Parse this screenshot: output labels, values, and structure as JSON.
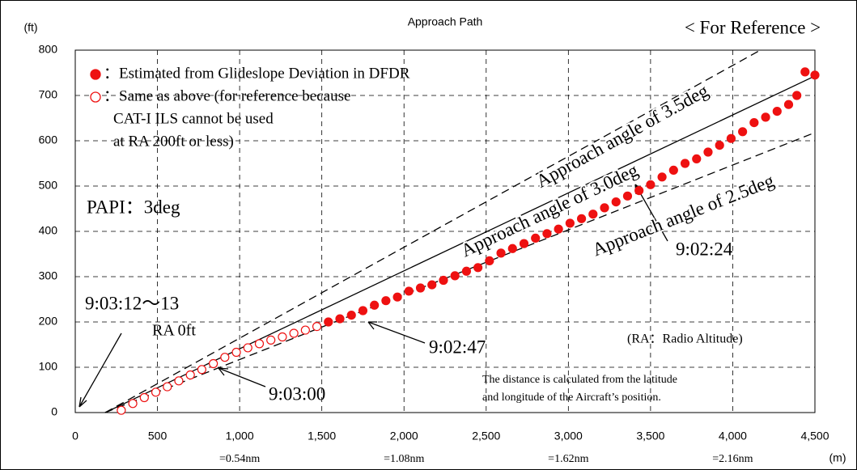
{
  "chart_data": {
    "type": "scatter",
    "title": "Approach Path",
    "subtitle": "< For Reference >",
    "y_axis_label": "(ft)",
    "x_axis_label": "(m)",
    "xlim": [
      0,
      4500
    ],
    "ylim": [
      0,
      800
    ],
    "xticks": [
      0,
      500,
      {
        "value": 1000,
        "label": "1,000"
      },
      {
        "value": 1500,
        "label": "1,500"
      },
      {
        "value": 2000,
        "label": "2,000"
      },
      {
        "value": 2500,
        "label": "2,500"
      },
      {
        "value": 3000,
        "label": "3,000"
      },
      {
        "value": 3500,
        "label": "3,500"
      },
      {
        "value": 4000,
        "label": "4,000"
      },
      {
        "value": 4500,
        "label": "4,500"
      }
    ],
    "yticks": [
      0,
      100,
      200,
      300,
      400,
      500,
      600,
      700,
      800
    ],
    "x2_labels": [
      {
        "value": 1000,
        "label": "=0.54nm"
      },
      {
        "value": 2000,
        "label": "=1.08nm"
      },
      {
        "value": 3000,
        "label": "=1.62nm"
      },
      {
        "value": 4000,
        "label": "=2.16nm"
      }
    ],
    "grid": true,
    "series": [
      {
        "name": [
          "：Estimated from Glideslope Deviation in DFDR"
        ],
        "marker": "filled",
        "color": "#ee1111",
        "x": [
          1540,
          1610,
          1680,
          1750,
          1820,
          1890,
          1960,
          2030,
          2100,
          2170,
          2240,
          2310,
          2380,
          2450,
          2520,
          2590,
          2660,
          2730,
          2800,
          2870,
          2940,
          3010,
          3080,
          3150,
          3220,
          3290,
          3360,
          3430,
          3500,
          3570,
          3640,
          3710,
          3780,
          3850,
          3920,
          3990,
          4060,
          4130,
          4200,
          4270,
          4340,
          4390,
          4440,
          4500
        ],
        "values": [
          200,
          207,
          215,
          225,
          237,
          247,
          255,
          268,
          275,
          282,
          292,
          302,
          312,
          320,
          335,
          352,
          362,
          373,
          385,
          395,
          405,
          418,
          428,
          438,
          452,
          465,
          478,
          490,
          503,
          520,
          535,
          550,
          560,
          575,
          590,
          605,
          620,
          640,
          652,
          665,
          680,
          700,
          752,
          745
        ]
      },
      {
        "name": [
          "：Same as above (for reference because",
          "CAT-I ILS cannot be used",
          "at RA 200ft or less)"
        ],
        "marker": "hollow",
        "color": "#ee1111",
        "x": [
          280,
          350,
          420,
          490,
          560,
          630,
          700,
          770,
          840,
          910,
          980,
          1050,
          1120,
          1190,
          1260,
          1330,
          1400,
          1470
        ],
        "values": [
          5,
          20,
          33,
          45,
          57,
          70,
          83,
          95,
          108,
          122,
          133,
          143,
          152,
          160,
          167,
          175,
          182,
          190
        ]
      }
    ],
    "reference_lines": [
      {
        "label": "Approach angle of 3.5deg",
        "style": "dashed",
        "x": [
          182,
          4168
        ],
        "values": [
          0,
          800
        ]
      },
      {
        "label": "Approach angle of 3.0deg",
        "style": "solid",
        "x": [
          182,
          4500
        ],
        "values": [
          0,
          743
        ]
      },
      {
        "label": "Approach angle of 2.5deg",
        "style": "dashed",
        "x": [
          182,
          4500
        ],
        "values": [
          0,
          618
        ]
      }
    ],
    "annotations": [
      "9:03:12～13",
      "RA 0ft",
      "9:03:00",
      "9:02:47",
      "9:02:24",
      "PAPI：3deg",
      "(RA：Radio Altitude)",
      "The distance is calculated from the latitude",
      "and longitude of the Aircraft’s position."
    ]
  }
}
